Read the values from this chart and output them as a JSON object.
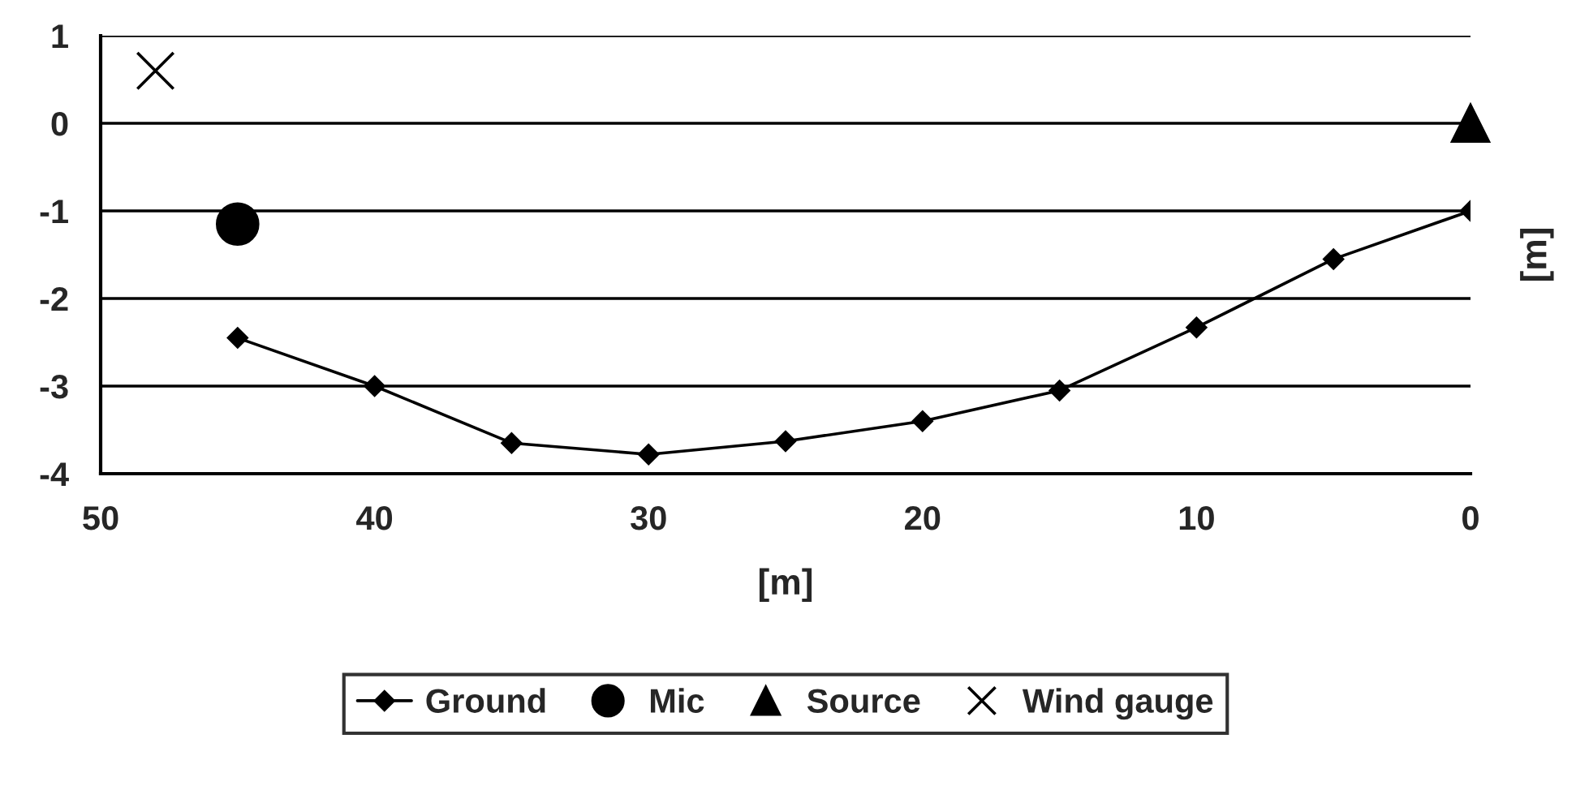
{
  "chart_data": {
    "type": "line",
    "xlabel": "[m]",
    "ylabel": "[m]",
    "xlim": [
      50,
      0
    ],
    "xticks": [
      50,
      40,
      30,
      20,
      10,
      0
    ],
    "ylim": [
      -4,
      1
    ],
    "yticks": [
      -4,
      -3,
      -2,
      -1,
      0,
      1
    ],
    "grid": "y",
    "legend": "bottom",
    "series": [
      {
        "name": "Ground",
        "marker": "diamond",
        "color": "#000000",
        "x": [
          45,
          40,
          35,
          30,
          25,
          20,
          15,
          10,
          5,
          0
        ],
        "values": [
          -2.45,
          -3.0,
          -3.65,
          -3.78,
          -3.63,
          -3.4,
          -3.05,
          -2.33,
          -1.55,
          -1.0
        ]
      },
      {
        "name": "Mic",
        "type": "scatter",
        "marker": "circle",
        "color": "#000000",
        "x": [
          45
        ],
        "values": [
          -1.15
        ]
      },
      {
        "name": "Source",
        "type": "scatter",
        "marker": "triangle",
        "color": "#000000",
        "x": [
          0
        ],
        "values": [
          0
        ]
      },
      {
        "name": "Wind gauge",
        "type": "scatter",
        "marker": "cross",
        "color": "#000000",
        "x": [
          48
        ],
        "values": [
          0.6
        ]
      }
    ]
  }
}
